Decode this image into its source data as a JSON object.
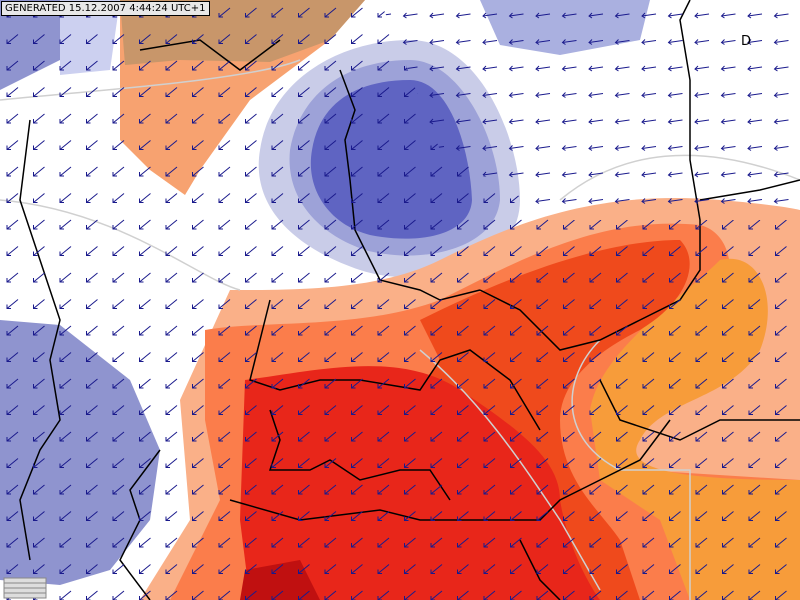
{
  "header": {
    "label": "GENERATED 15.12.2007 4:44:24 UTC+1"
  },
  "map_labels": [
    "D"
  ]
}
